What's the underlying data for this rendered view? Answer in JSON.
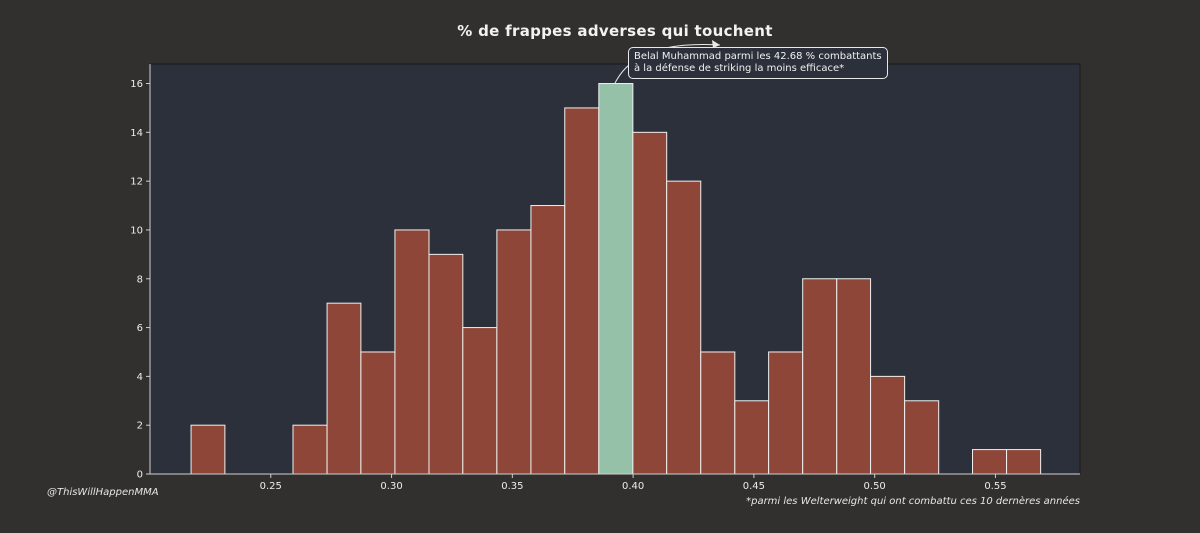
{
  "chart_data": {
    "type": "bar",
    "title": "% de frappes adverses qui touchent",
    "xlabel": "",
    "ylabel": "",
    "xlim": [
      0.2,
      0.585
    ],
    "ylim": [
      0,
      16.8
    ],
    "xticks": [
      "0.25",
      "0.30",
      "0.35",
      "0.40",
      "0.45",
      "0.50",
      "0.55"
    ],
    "yticks": [
      "0",
      "2",
      "4",
      "6",
      "8",
      "10",
      "12",
      "14",
      "16"
    ],
    "bins": [
      {
        "start": 0.217,
        "end": 0.231,
        "value": 2
      },
      {
        "start": 0.231,
        "end": 0.2451,
        "value": 0
      },
      {
        "start": 0.2451,
        "end": 0.2592,
        "value": 0
      },
      {
        "start": 0.2592,
        "end": 0.2733,
        "value": 2
      },
      {
        "start": 0.2733,
        "end": 0.2873,
        "value": 7
      },
      {
        "start": 0.2873,
        "end": 0.3014,
        "value": 5
      },
      {
        "start": 0.3014,
        "end": 0.3155,
        "value": 10
      },
      {
        "start": 0.3155,
        "end": 0.3295,
        "value": 9
      },
      {
        "start": 0.3295,
        "end": 0.3436,
        "value": 6
      },
      {
        "start": 0.3436,
        "end": 0.3577,
        "value": 10
      },
      {
        "start": 0.3577,
        "end": 0.3717,
        "value": 11
      },
      {
        "start": 0.3717,
        "end": 0.3858,
        "value": 15
      },
      {
        "start": 0.3858,
        "end": 0.3999,
        "value": 16,
        "highlight": true
      },
      {
        "start": 0.3999,
        "end": 0.4139,
        "value": 14
      },
      {
        "start": 0.4139,
        "end": 0.428,
        "value": 12
      },
      {
        "start": 0.428,
        "end": 0.4421,
        "value": 5
      },
      {
        "start": 0.4421,
        "end": 0.4561,
        "value": 3
      },
      {
        "start": 0.4561,
        "end": 0.4702,
        "value": 5
      },
      {
        "start": 0.4702,
        "end": 0.4843,
        "value": 8
      },
      {
        "start": 0.4843,
        "end": 0.4983,
        "value": 8
      },
      {
        "start": 0.4983,
        "end": 0.5124,
        "value": 4
      },
      {
        "start": 0.5124,
        "end": 0.5265,
        "value": 3
      },
      {
        "start": 0.5265,
        "end": 0.5405,
        "value": 0
      },
      {
        "start": 0.5405,
        "end": 0.5546,
        "value": 1
      },
      {
        "start": 0.5546,
        "end": 0.5687,
        "value": 1
      }
    ],
    "colors": {
      "background": "#32302e",
      "plot_background": "#2c303b",
      "bar": "#8e4638",
      "highlight_bar": "#96c1a9",
      "bar_edge": "#f0f0f0",
      "text": "#ececec"
    },
    "annotation": {
      "lines": [
        "Belal Muhammad parmi les 42.68 % combattants",
        "à la défense de striking la moins efficace*"
      ]
    },
    "credit": "@ThisWillHappenMMA",
    "footnote": "*parmi les Welterweight qui ont combattu ces 10 dernères années",
    "grid": false,
    "legend": "none"
  }
}
